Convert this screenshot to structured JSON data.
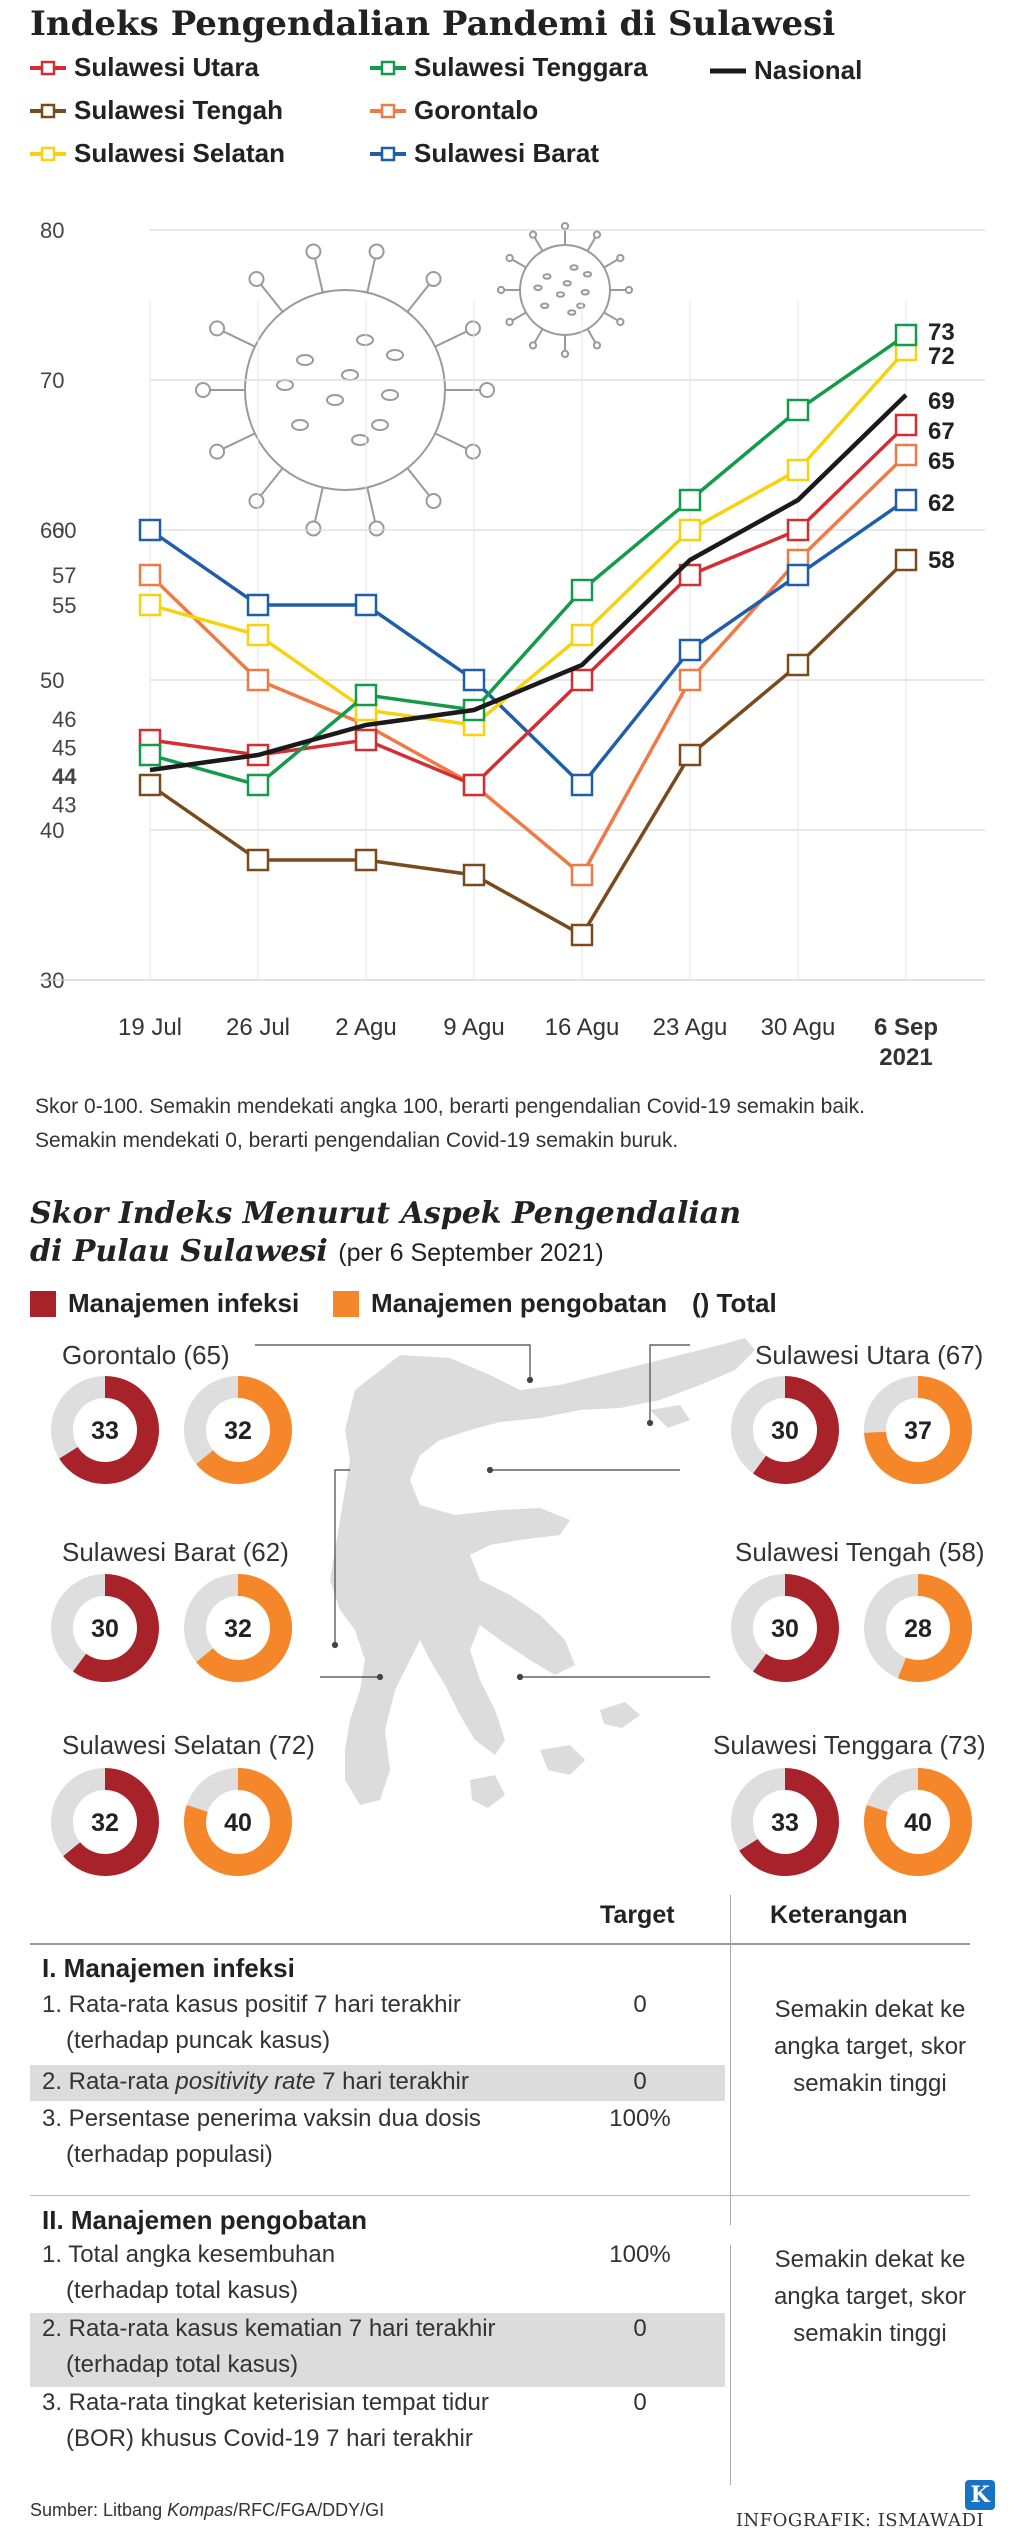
{
  "title": "Indeks Pengendalian Pandemi di Sulawesi",
  "colors": {
    "Sulawesi Utara": "#d42e35",
    "Sulawesi Tenggara": "#139a4a",
    "Nasional": "#1a1a1a",
    "Sulawesi Tengah": "#7a4a1c",
    "Gorontalo": "#ee7b45",
    "Sulawesi Selatan": "#f7d20f",
    "Sulawesi Barat": "#1f5ea8",
    "infeksi": "#a8222a",
    "pengobatan": "#f5872a",
    "donut_bg": "#dedede",
    "map": "#dcdcdc"
  },
  "chart_data": [
    {
      "type": "line",
      "title": "Indeks Pengendalian Pandemi di Sulawesi",
      "categories": [
        "19 Jul",
        "26 Jul",
        "2 Agu",
        "9 Agu",
        "16 Agu",
        "23 Agu",
        "30 Agu",
        "6 Sep 2021"
      ],
      "x_tick_labels": [
        "19 Jul",
        "26 Jul",
        "2 Agu",
        "9 Agu",
        "16 Agu",
        "23 Agu",
        "30 Agu",
        "6 Sep"
      ],
      "x_tick_sub": "2021",
      "ylim": [
        30,
        80
      ],
      "y_ticks": [
        30,
        40,
        50,
        60,
        70,
        80
      ],
      "grid": true,
      "legend_position": "top",
      "series": [
        {
          "name": "Sulawesi Utara",
          "values": [
            46,
            45,
            46,
            43,
            50,
            57,
            60,
            67
          ]
        },
        {
          "name": "Sulawesi Tengah",
          "values": [
            43,
            38,
            38,
            37,
            33,
            45,
            51,
            58
          ]
        },
        {
          "name": "Sulawesi Selatan",
          "values": [
            55,
            53,
            48,
            47,
            53,
            60,
            64,
            72
          ]
        },
        {
          "name": "Sulawesi Tenggara",
          "values": [
            45,
            43,
            49,
            48,
            56,
            62,
            68,
            73
          ]
        },
        {
          "name": "Gorontalo",
          "values": [
            57,
            50,
            47,
            43,
            37,
            50,
            58,
            65
          ]
        },
        {
          "name": "Sulawesi Barat",
          "values": [
            60,
            55,
            55,
            50,
            43,
            52,
            57,
            62
          ]
        },
        {
          "name": "Nasional",
          "values": [
            44,
            45,
            47,
            48,
            51,
            58,
            62,
            69
          ]
        }
      ],
      "start_labels": [
        "60",
        "57",
        "55",
        "46",
        "45",
        "44",
        "43"
      ],
      "end_labels": [
        "73",
        "72",
        "69",
        "67",
        "65",
        "62",
        "58"
      ]
    },
    {
      "type": "pie",
      "title": "Skor Indeks Menurut Aspek Pengendalian di Pulau Sulawesi",
      "subtitle": "(per 6 September 2021)",
      "max": 50,
      "legend": [
        "Manajemen infeksi",
        "Manajemen pengobatan",
        "() Total"
      ],
      "provinces": [
        {
          "name": "Gorontalo",
          "total": 65,
          "infeksi": 33,
          "pengobatan": 32
        },
        {
          "name": "Sulawesi Utara",
          "total": 67,
          "infeksi": 30,
          "pengobatan": 37
        },
        {
          "name": "Sulawesi Barat",
          "total": 62,
          "infeksi": 30,
          "pengobatan": 32
        },
        {
          "name": "Sulawesi Tengah",
          "total": 58,
          "infeksi": 30,
          "pengobatan": 28
        },
        {
          "name": "Sulawesi Selatan",
          "total": 72,
          "infeksi": 32,
          "pengobatan": 40
        },
        {
          "name": "Sulawesi Tenggara",
          "total": 73,
          "infeksi": 33,
          "pengobatan": 40
        }
      ]
    }
  ],
  "legend": {
    "sulut": "Sulawesi Utara",
    "sulteng": "Sulawesi Tengah",
    "sulsel": "Sulawesi Selatan",
    "sultra": "Sulawesi Tenggara",
    "gorontalo": "Gorontalo",
    "sulbar": "Sulawesi Barat",
    "nasional": "Nasional"
  },
  "note": {
    "line1": "Skor 0-100. Semakin mendekati angka 100, berarti pengendalian Covid-19 semakin baik.",
    "line2": "Semakin mendekati 0, berarti pengendalian Covid-19 semakin buruk."
  },
  "section2": {
    "title_line1": "Skor Indeks Menurut Aspek Pengendalian",
    "title_line2": "di Pulau Sulawesi",
    "date": "(per 6 September 2021)",
    "legend_infeksi": "Manajemen infeksi",
    "legend_pengobatan": "Manajemen pengobatan",
    "legend_total": "() Total",
    "labels": {
      "gorontalo": "Gorontalo (65)",
      "sulut": "Sulawesi Utara (67)",
      "sulbar": "Sulawesi Barat (62)",
      "sulteng": "Sulawesi Tengah (58)",
      "sulsel": "Sulawesi Selatan (72)",
      "sultra": "Sulawesi Tenggara (73)"
    }
  },
  "table": {
    "col_target": "Target",
    "col_keterangan": "Keterangan",
    "section1": "I. Manajemen infeksi",
    "r1a": "1. Rata-rata kasus positif 7 hari terakhir",
    "r1b": "(terhadap puncak kasus)",
    "r1t": "0",
    "r2a": "2. Rata-rata ",
    "r2i": "positivity rate",
    "r2b": " 7 hari terakhir",
    "r2t": "0",
    "r3a": "3. Persentase penerima vaksin dua dosis",
    "r3b": "(terhadap populasi)",
    "r3t": "100%",
    "ket1": "Semakin dekat ke angka target, skor semakin tinggi",
    "section2": "II. Manajemen pengobatan",
    "r4a": "1. Total angka kesembuhan",
    "r4b": "(terhadap total kasus)",
    "r4t": "100%",
    "r5a": "2. Rata-rata kasus kematian 7 hari terakhir",
    "r5b": "(terhadap total kasus)",
    "r5t": "0",
    "r6a": "3. Rata-rata tingkat keterisian tempat tidur",
    "r6b": "(BOR) khusus Covid-19 7 hari terakhir",
    "r6t": "0",
    "ket2": "Semakin dekat ke angka target, skor semakin tinggi"
  },
  "source_prefix": "Sumber: Litbang ",
  "source_italic": "Kompas",
  "source_suffix": "/RFC/FGA/DDY/GI",
  "credit": "INFOGRAFIK: ISMAWADI",
  "logo": "K"
}
